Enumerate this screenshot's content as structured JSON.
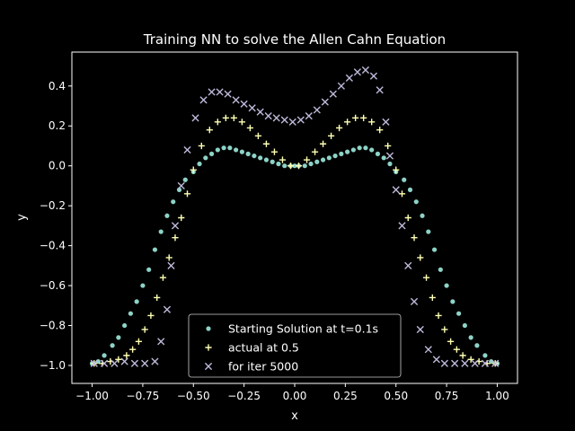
{
  "chart_data": {
    "type": "scatter",
    "title": "Training NN to solve the Allen Cahn Equation",
    "xlabel": "x",
    "ylabel": "y",
    "xlim": [
      -1.1,
      1.1
    ],
    "ylim": [
      -1.09,
      0.57
    ],
    "xticks": [
      -1.0,
      -0.75,
      -0.5,
      -0.25,
      0.0,
      0.25,
      0.5,
      0.75,
      1.0
    ],
    "xtick_labels": [
      "−1.00",
      "−0.75",
      "−0.50",
      "−0.25",
      "0.00",
      "0.25",
      "0.50",
      "0.75",
      "1.00"
    ],
    "yticks": [
      -1.0,
      -0.8,
      -0.6,
      -0.4,
      -0.2,
      0.0,
      0.2,
      0.4
    ],
    "ytick_labels": [
      "−1.0",
      "−0.8",
      "−0.6",
      "−0.4",
      "−0.2",
      "0.0",
      "0.2",
      "0.4"
    ],
    "grid": false,
    "background": "#000000",
    "legend_position": "bottom-center",
    "series": [
      {
        "name": "Starting Solution at t=0.1s",
        "marker": "circle",
        "color": "#8dd3c7",
        "points": [
          [
            -1.0,
            -0.99
          ],
          [
            -0.97,
            -0.98
          ],
          [
            -0.94,
            -0.95
          ],
          [
            -0.9,
            -0.9
          ],
          [
            -0.87,
            -0.86
          ],
          [
            -0.84,
            -0.8
          ],
          [
            -0.81,
            -0.74
          ],
          [
            -0.78,
            -0.68
          ],
          [
            -0.75,
            -0.6
          ],
          [
            -0.72,
            -0.52
          ],
          [
            -0.69,
            -0.42
          ],
          [
            -0.66,
            -0.33
          ],
          [
            -0.63,
            -0.25
          ],
          [
            -0.6,
            -0.18
          ],
          [
            -0.57,
            -0.12
          ],
          [
            -0.54,
            -0.07
          ],
          [
            -0.5,
            -0.03
          ],
          [
            -0.47,
            0.01
          ],
          [
            -0.44,
            0.04
          ],
          [
            -0.41,
            0.06
          ],
          [
            -0.38,
            0.08
          ],
          [
            -0.35,
            0.09
          ],
          [
            -0.32,
            0.09
          ],
          [
            -0.29,
            0.08
          ],
          [
            -0.26,
            0.07
          ],
          [
            -0.23,
            0.06
          ],
          [
            -0.2,
            0.05
          ],
          [
            -0.17,
            0.04
          ],
          [
            -0.14,
            0.03
          ],
          [
            -0.11,
            0.02
          ],
          [
            -0.08,
            0.01
          ],
          [
            -0.05,
            0.0
          ],
          [
            -0.02,
            0.0
          ],
          [
            0.0,
            0.0
          ],
          [
            0.02,
            0.0
          ],
          [
            0.05,
            0.0
          ],
          [
            0.08,
            0.01
          ],
          [
            0.11,
            0.02
          ],
          [
            0.14,
            0.03
          ],
          [
            0.17,
            0.04
          ],
          [
            0.2,
            0.05
          ],
          [
            0.23,
            0.06
          ],
          [
            0.26,
            0.07
          ],
          [
            0.29,
            0.08
          ],
          [
            0.32,
            0.09
          ],
          [
            0.35,
            0.09
          ],
          [
            0.38,
            0.08
          ],
          [
            0.41,
            0.06
          ],
          [
            0.44,
            0.04
          ],
          [
            0.47,
            0.01
          ],
          [
            0.5,
            -0.03
          ],
          [
            0.54,
            -0.07
          ],
          [
            0.57,
            -0.12
          ],
          [
            0.6,
            -0.18
          ],
          [
            0.63,
            -0.25
          ],
          [
            0.66,
            -0.33
          ],
          [
            0.69,
            -0.42
          ],
          [
            0.72,
            -0.52
          ],
          [
            0.75,
            -0.6
          ],
          [
            0.78,
            -0.68
          ],
          [
            0.81,
            -0.74
          ],
          [
            0.84,
            -0.8
          ],
          [
            0.87,
            -0.86
          ],
          [
            0.9,
            -0.9
          ],
          [
            0.94,
            -0.95
          ],
          [
            0.97,
            -0.98
          ],
          [
            1.0,
            -0.99
          ]
        ]
      },
      {
        "name": "actual at 0.5",
        "marker": "plus",
        "color": "#ffffb3",
        "points": [
          [
            -0.99,
            -0.99
          ],
          [
            -0.95,
            -0.99
          ],
          [
            -0.91,
            -0.98
          ],
          [
            -0.87,
            -0.97
          ],
          [
            -0.83,
            -0.95
          ],
          [
            -0.8,
            -0.92
          ],
          [
            -0.77,
            -0.88
          ],
          [
            -0.74,
            -0.82
          ],
          [
            -0.71,
            -0.75
          ],
          [
            -0.68,
            -0.66
          ],
          [
            -0.65,
            -0.56
          ],
          [
            -0.62,
            -0.46
          ],
          [
            -0.59,
            -0.36
          ],
          [
            -0.56,
            -0.26
          ],
          [
            -0.53,
            -0.14
          ],
          [
            -0.5,
            -0.02
          ],
          [
            -0.46,
            0.1
          ],
          [
            -0.42,
            0.18
          ],
          [
            -0.38,
            0.22
          ],
          [
            -0.34,
            0.24
          ],
          [
            -0.3,
            0.24
          ],
          [
            -0.26,
            0.22
          ],
          [
            -0.22,
            0.19
          ],
          [
            -0.18,
            0.15
          ],
          [
            -0.14,
            0.11
          ],
          [
            -0.1,
            0.07
          ],
          [
            -0.06,
            0.03
          ],
          [
            -0.02,
            0.0
          ],
          [
            0.02,
            0.0
          ],
          [
            0.06,
            0.03
          ],
          [
            0.1,
            0.07
          ],
          [
            0.14,
            0.11
          ],
          [
            0.18,
            0.15
          ],
          [
            0.22,
            0.19
          ],
          [
            0.26,
            0.22
          ],
          [
            0.3,
            0.24
          ],
          [
            0.34,
            0.24
          ],
          [
            0.38,
            0.22
          ],
          [
            0.42,
            0.18
          ],
          [
            0.46,
            0.1
          ],
          [
            0.5,
            -0.02
          ],
          [
            0.53,
            -0.14
          ],
          [
            0.56,
            -0.26
          ],
          [
            0.59,
            -0.36
          ],
          [
            0.62,
            -0.46
          ],
          [
            0.65,
            -0.56
          ],
          [
            0.68,
            -0.66
          ],
          [
            0.71,
            -0.75
          ],
          [
            0.74,
            -0.82
          ],
          [
            0.77,
            -0.88
          ],
          [
            0.8,
            -0.92
          ],
          [
            0.83,
            -0.95
          ],
          [
            0.87,
            -0.97
          ],
          [
            0.91,
            -0.98
          ],
          [
            0.95,
            -0.99
          ],
          [
            0.99,
            -0.99
          ]
        ]
      },
      {
        "name": "for iter 5000",
        "marker": "x",
        "color": "#bebada",
        "points": [
          [
            -0.99,
            -0.99
          ],
          [
            -0.94,
            -0.99
          ],
          [
            -0.89,
            -0.99
          ],
          [
            -0.84,
            -0.98
          ],
          [
            -0.79,
            -0.99
          ],
          [
            -0.74,
            -0.99
          ],
          [
            -0.69,
            -0.98
          ],
          [
            -0.66,
            -0.88
          ],
          [
            -0.63,
            -0.72
          ],
          [
            -0.61,
            -0.5
          ],
          [
            -0.59,
            -0.3
          ],
          [
            -0.56,
            -0.1
          ],
          [
            -0.53,
            0.08
          ],
          [
            -0.49,
            0.24
          ],
          [
            -0.45,
            0.33
          ],
          [
            -0.41,
            0.37
          ],
          [
            -0.37,
            0.37
          ],
          [
            -0.33,
            0.36
          ],
          [
            -0.29,
            0.33
          ],
          [
            -0.25,
            0.31
          ],
          [
            -0.21,
            0.29
          ],
          [
            -0.17,
            0.27
          ],
          [
            -0.13,
            0.25
          ],
          [
            -0.09,
            0.24
          ],
          [
            -0.05,
            0.23
          ],
          [
            -0.01,
            0.22
          ],
          [
            0.03,
            0.23
          ],
          [
            0.07,
            0.25
          ],
          [
            0.11,
            0.28
          ],
          [
            0.15,
            0.32
          ],
          [
            0.19,
            0.36
          ],
          [
            0.23,
            0.4
          ],
          [
            0.27,
            0.44
          ],
          [
            0.31,
            0.47
          ],
          [
            0.35,
            0.48
          ],
          [
            0.39,
            0.45
          ],
          [
            0.42,
            0.38
          ],
          [
            0.45,
            0.22
          ],
          [
            0.47,
            0.05
          ],
          [
            0.5,
            -0.12
          ],
          [
            0.53,
            -0.3
          ],
          [
            0.56,
            -0.5
          ],
          [
            0.59,
            -0.68
          ],
          [
            0.62,
            -0.82
          ],
          [
            0.66,
            -0.92
          ],
          [
            0.7,
            -0.97
          ],
          [
            0.74,
            -0.99
          ],
          [
            0.79,
            -0.99
          ],
          [
            0.84,
            -0.99
          ],
          [
            0.89,
            -0.99
          ],
          [
            0.94,
            -0.99
          ],
          [
            0.99,
            -0.99
          ]
        ]
      }
    ]
  }
}
